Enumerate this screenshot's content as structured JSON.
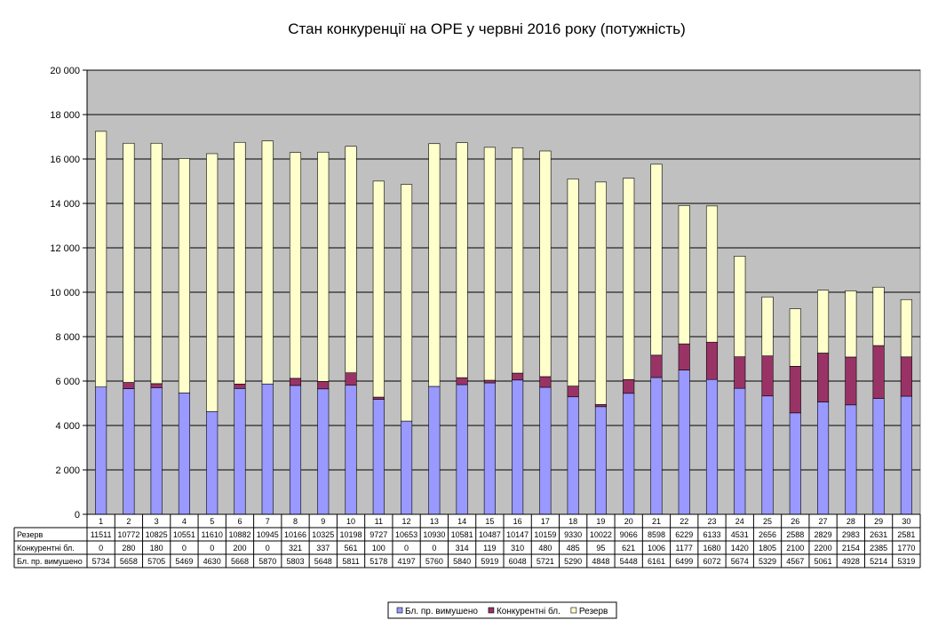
{
  "chart_data": {
    "type": "bar",
    "stacked": true,
    "title": "Стан конкуренції на ОРЕ  у червні 2016 року (потужність)",
    "xlabel": "",
    "ylabel": "",
    "ylim": [
      0,
      20000
    ],
    "yticks": [
      "0",
      "2 000",
      "4 000",
      "6 000",
      "8 000",
      "10 000",
      "12 000",
      "14 000",
      "16 000",
      "18 000",
      "20 000"
    ],
    "grid": true,
    "legend_position": "bottom",
    "data_table": true,
    "categories": [
      "1",
      "2",
      "3",
      "4",
      "5",
      "6",
      "7",
      "8",
      "9",
      "10",
      "11",
      "12",
      "13",
      "14",
      "15",
      "16",
      "17",
      "18",
      "19",
      "20",
      "21",
      "22",
      "23",
      "24",
      "25",
      "26",
      "27",
      "28",
      "29",
      "30"
    ],
    "series": [
      {
        "name": "Бл. пр. вимушено",
        "color": "#9999ff",
        "values": [
          5734,
          5658,
          5705,
          5469,
          4630,
          5668,
          5870,
          5803,
          5648,
          5811,
          5178,
          4197,
          5760,
          5840,
          5919,
          6048,
          5721,
          5290,
          4848,
          5448,
          6161,
          6499,
          6072,
          5674,
          5329,
          4567,
          5061,
          4928,
          5214,
          5319
        ]
      },
      {
        "name": "Конкурентні бл.",
        "color": "#993366",
        "values": [
          0,
          280,
          180,
          0,
          0,
          200,
          0,
          321,
          337,
          561,
          100,
          0,
          0,
          314,
          119,
          310,
          480,
          485,
          95,
          621,
          1006,
          1177,
          1680,
          1420,
          1805,
          2100,
          2200,
          2154,
          2385,
          1770
        ]
      },
      {
        "name": "Резерв",
        "color": "#ffffcc",
        "values": [
          11511,
          10772,
          10825,
          10551,
          11610,
          10882,
          10945,
          10166,
          10325,
          10198,
          9727,
          10653,
          10930,
          10581,
          10487,
          10147,
          10159,
          9330,
          10022,
          9066,
          8598,
          6229,
          6133,
          4531,
          2656,
          2588,
          2829,
          2983,
          2631,
          2581
        ]
      }
    ],
    "table_rows": [
      {
        "label": "Резерв",
        "series_index": 2
      },
      {
        "label": "Конкурентні бл.",
        "series_index": 1
      },
      {
        "label": "Бл. пр. вимушено",
        "series_index": 0
      }
    ],
    "legend_order": [
      0,
      1,
      2
    ],
    "plot_background": "#c0c0c0"
  }
}
